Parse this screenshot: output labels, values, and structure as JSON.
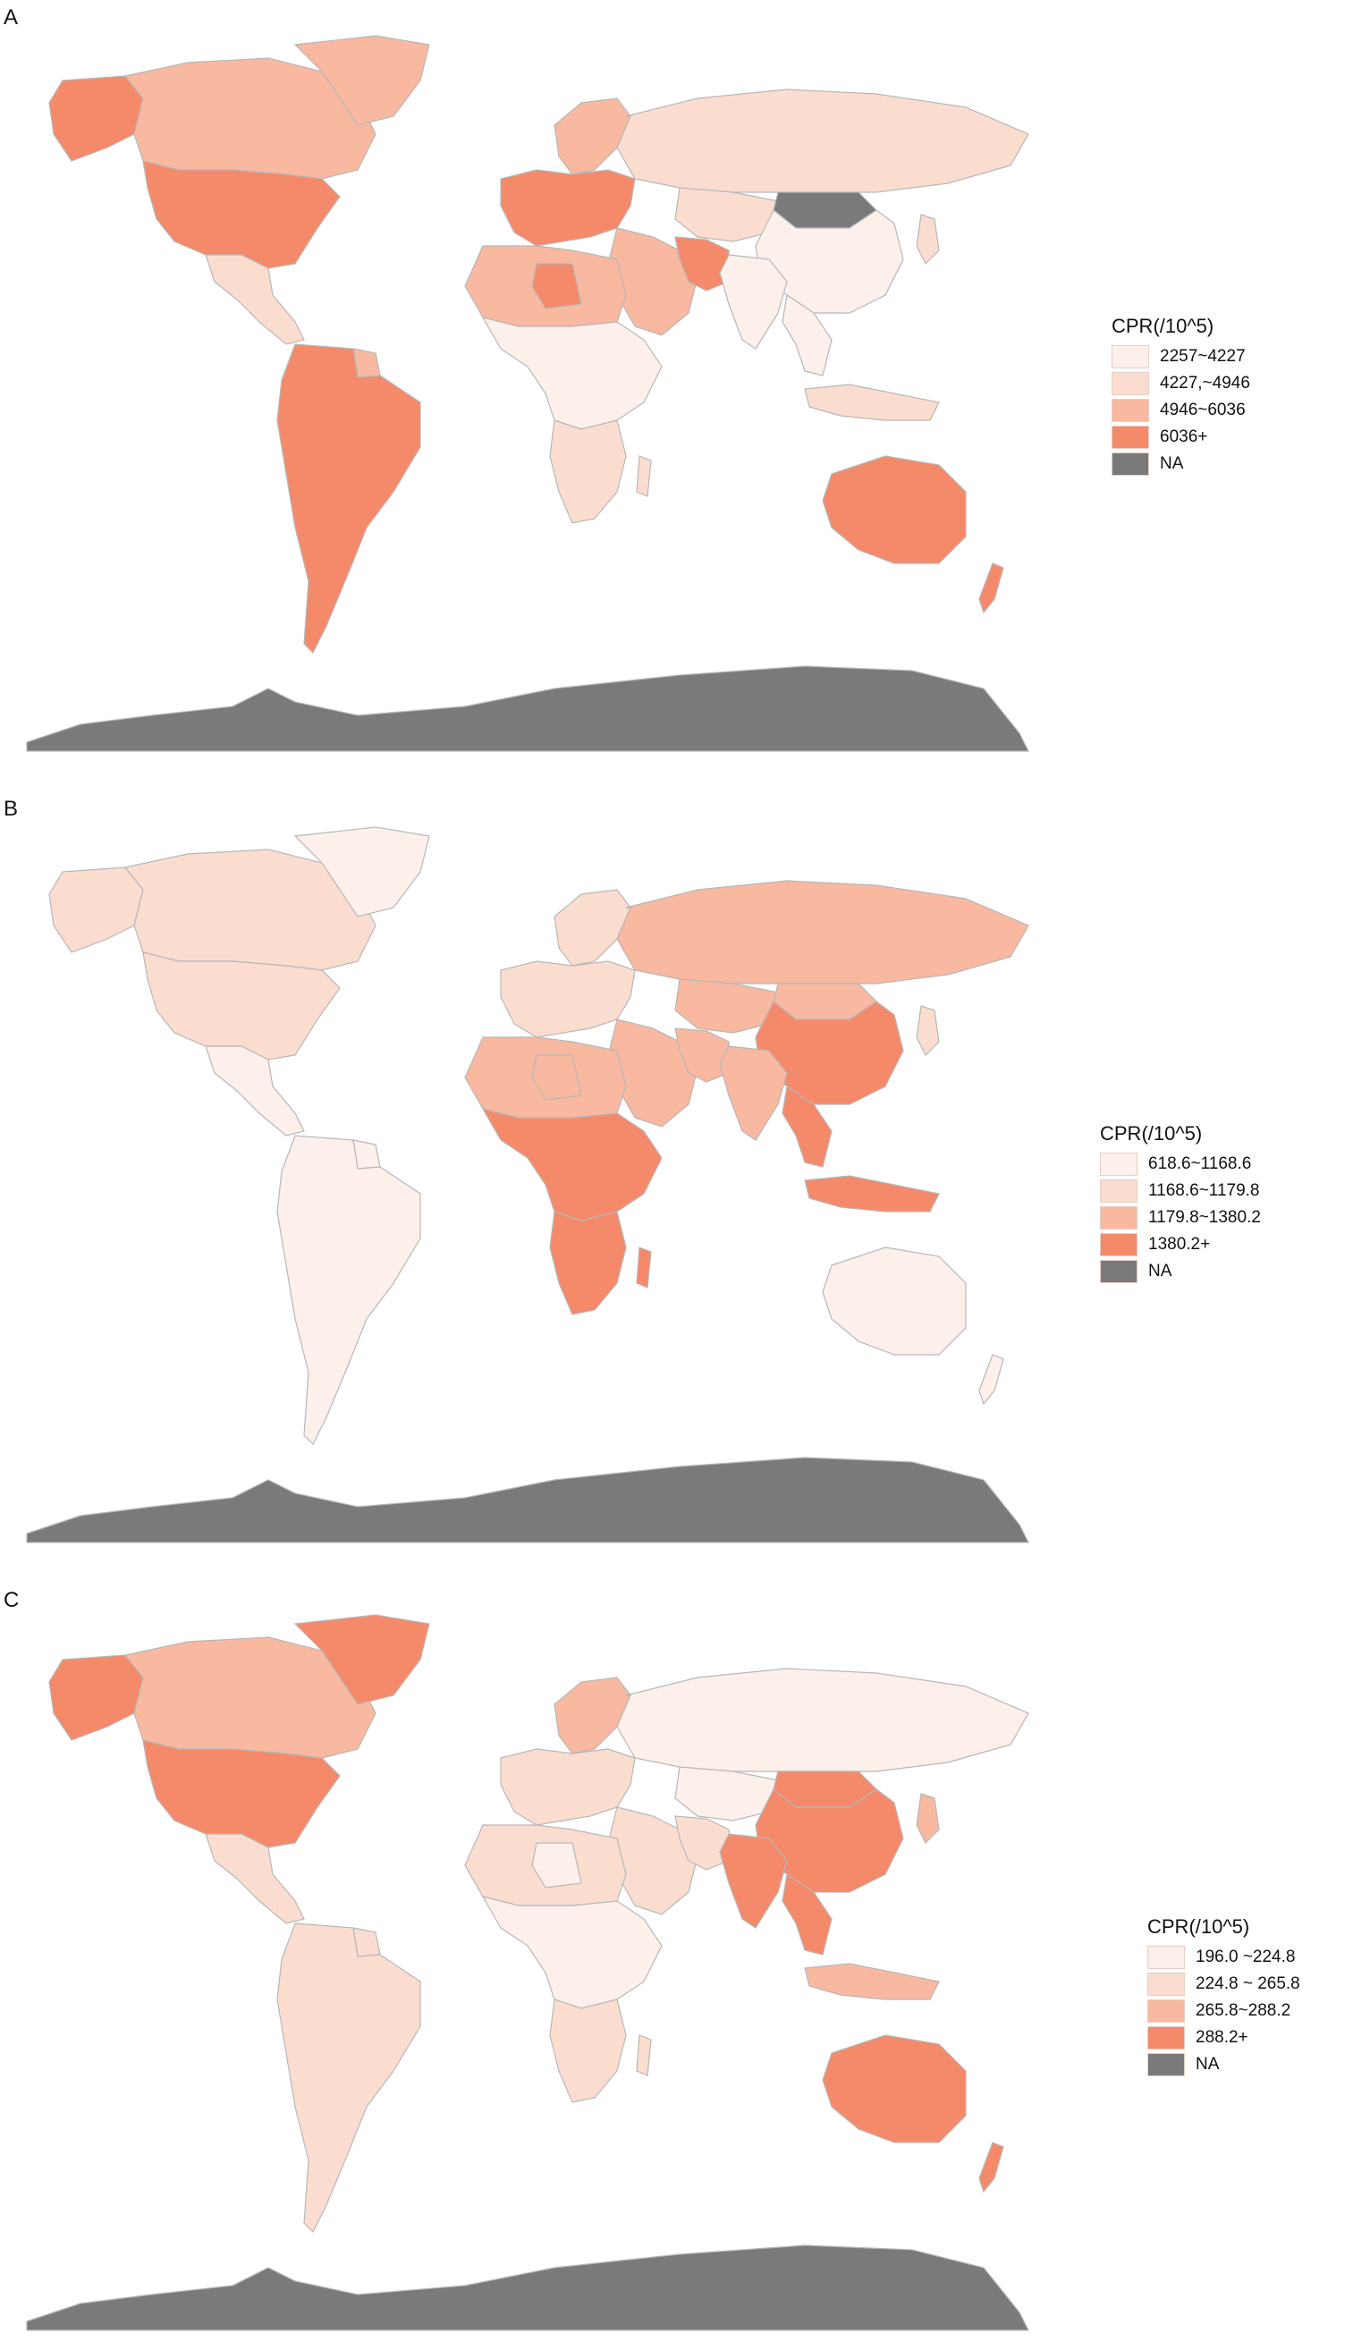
{
  "panels": [
    {
      "letter": "A",
      "legend": {
        "title": "CPR(/10^5)",
        "items": [
          {
            "label": "2257~4227",
            "color": "#fdf0ea"
          },
          {
            "label": "4227,~4946",
            "color": "#fbddd0"
          },
          {
            "label": "4946~6036",
            "color": "#f8b9a0"
          },
          {
            "label": "6036+",
            "color": "#f58a6b"
          },
          {
            "label": "NA",
            "color": "#7a7a7a"
          }
        ]
      },
      "regions": {
        "north_america": 4,
        "canada": 3,
        "alaska": 4,
        "greenland": 3,
        "central_america": 2,
        "south_america": 4,
        "guianas": 3,
        "europe": 4,
        "scandinavia": 3,
        "russia": 2,
        "north_africa": 3,
        "libya": 4,
        "sub_saharan_africa": 1,
        "southern_africa": 2,
        "middle_east": 3,
        "iran": 4,
        "central_asia": 2,
        "china": 1,
        "mongolia": 5,
        "india": 1,
        "southeast_asia": 1,
        "japan": 2,
        "indonesia": 2,
        "australia": 4,
        "new_zealand": 4
      }
    },
    {
      "letter": "B",
      "legend": {
        "title": "CPR(/10^5)",
        "items": [
          {
            "label": "618.6~1168.6",
            "color": "#fdf0ea"
          },
          {
            "label": "1168.6~1179.8",
            "color": "#fbddd0"
          },
          {
            "label": "1179.8~1380.2",
            "color": "#f8b9a0"
          },
          {
            "label": "1380.2+",
            "color": "#f58a6b"
          },
          {
            "label": "NA",
            "color": "#7a7a7a"
          }
        ]
      },
      "regions": {
        "north_america": 2,
        "canada": 2,
        "alaska": 2,
        "greenland": 1,
        "central_america": 1,
        "south_america": 1,
        "guianas": 1,
        "europe": 2,
        "scandinavia": 2,
        "russia": 3,
        "north_africa": 3,
        "libya": 3,
        "sub_saharan_africa": 4,
        "southern_africa": 4,
        "middle_east": 3,
        "iran": 3,
        "central_asia": 3,
        "china": 4,
        "mongolia": 3,
        "india": 3,
        "southeast_asia": 4,
        "japan": 2,
        "indonesia": 4,
        "australia": 1,
        "new_zealand": 1
      }
    },
    {
      "letter": "C",
      "legend": {
        "title": "CPR(/10^5)",
        "items": [
          {
            "label": "196.0 ~224.8",
            "color": "#fdf0ea"
          },
          {
            "label": "224.8 ~ 265.8",
            "color": "#fbddd0"
          },
          {
            "label": "265.8~288.2",
            "color": "#f8b9a0"
          },
          {
            "label": "288.2+",
            "color": "#f58a6b"
          },
          {
            "label": "NA",
            "color": "#7a7a7a"
          }
        ]
      },
      "regions": {
        "north_america": 4,
        "canada": 3,
        "alaska": 4,
        "greenland": 4,
        "central_america": 2,
        "south_america": 2,
        "guianas": 2,
        "europe": 2,
        "scandinavia": 3,
        "russia": 1,
        "north_africa": 2,
        "libya": 1,
        "sub_saharan_africa": 1,
        "southern_africa": 2,
        "middle_east": 2,
        "iran": 2,
        "central_asia": 1,
        "china": 4,
        "mongolia": 4,
        "india": 4,
        "southeast_asia": 4,
        "japan": 3,
        "indonesia": 3,
        "australia": 4,
        "new_zealand": 4
      }
    }
  ],
  "antarctica_color": "#7a7a7a",
  "border_color": "#b7b7b7"
}
